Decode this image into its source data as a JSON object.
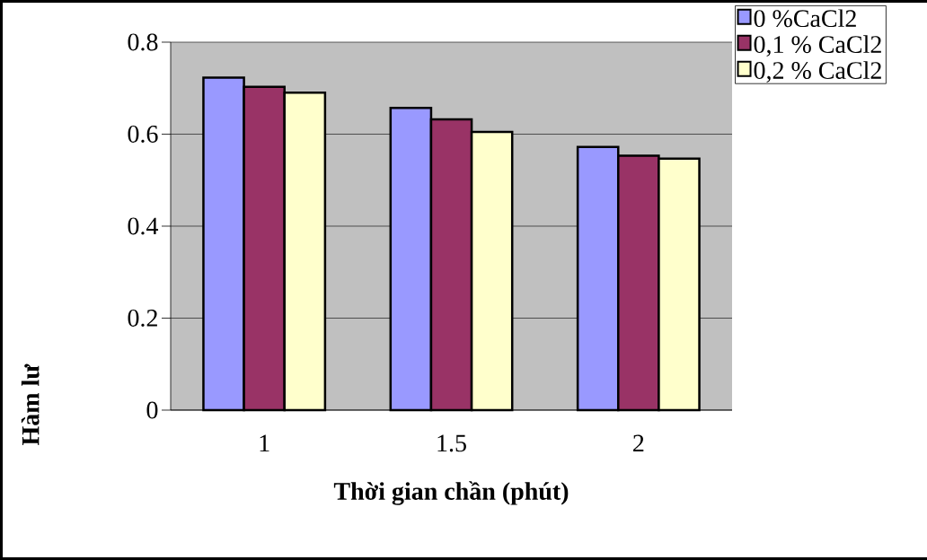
{
  "chart_data": {
    "type": "bar",
    "xlabel": "Thời gian chần (phút)",
    "ylabel": "Hàm lư",
    "categories": [
      "1",
      "1.5",
      "2"
    ],
    "series": [
      {
        "name": "0 %CaCl2",
        "color": "#9999ff",
        "values": [
          0.723,
          0.657,
          0.572
        ]
      },
      {
        "name": "0,1 % CaCl2",
        "color": "#993366",
        "values": [
          0.703,
          0.632,
          0.553
        ]
      },
      {
        "name": "0,2 % CaCl2",
        "color": "#ffffcc",
        "values": [
          0.69,
          0.605,
          0.547
        ]
      }
    ],
    "ylim": [
      0,
      0.8
    ],
    "yticks": [
      0,
      0.2,
      0.4,
      0.6,
      0.8
    ],
    "grid": "y",
    "legend": "top right"
  }
}
